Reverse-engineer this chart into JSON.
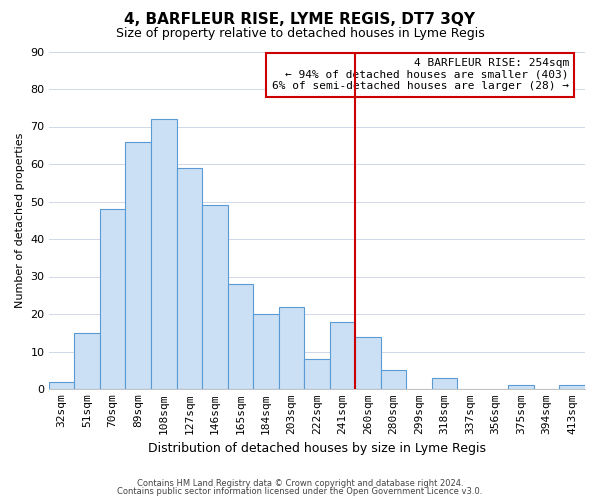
{
  "title": "4, BARFLEUR RISE, LYME REGIS, DT7 3QY",
  "subtitle": "Size of property relative to detached houses in Lyme Regis",
  "xlabel": "Distribution of detached houses by size in Lyme Regis",
  "ylabel": "Number of detached properties",
  "bar_labels": [
    "32sqm",
    "51sqm",
    "70sqm",
    "89sqm",
    "108sqm",
    "127sqm",
    "146sqm",
    "165sqm",
    "184sqm",
    "203sqm",
    "222sqm",
    "241sqm",
    "260sqm",
    "280sqm",
    "299sqm",
    "318sqm",
    "337sqm",
    "356sqm",
    "375sqm",
    "394sqm",
    "413sqm"
  ],
  "bar_values": [
    2,
    15,
    48,
    66,
    72,
    59,
    49,
    28,
    20,
    22,
    8,
    18,
    14,
    5,
    0,
    3,
    0,
    0,
    1,
    0,
    1
  ],
  "bar_color": "#cce0f5",
  "bar_edge_color": "#5b9bd5",
  "grid_color": "#d0d8e8",
  "fig_background_color": "#ffffff",
  "ax_background_color": "#ffffff",
  "vline_color": "#cc0000",
  "vline_x": 11.5,
  "annotation_text": "4 BARFLEUR RISE: 254sqm\n← 94% of detached houses are smaller (403)\n6% of semi-detached houses are larger (28) →",
  "annotation_box_edgecolor": "#cc0000",
  "annotation_box_facecolor": "#ffffff",
  "ylim": [
    0,
    90
  ],
  "yticks": [
    0,
    10,
    20,
    30,
    40,
    50,
    60,
    70,
    80,
    90
  ],
  "title_fontsize": 11,
  "subtitle_fontsize": 9,
  "xlabel_fontsize": 9,
  "ylabel_fontsize": 8,
  "tick_fontsize": 8,
  "annot_fontsize": 8,
  "footer_line1": "Contains HM Land Registry data © Crown copyright and database right 2024.",
  "footer_line2": "Contains public sector information licensed under the Open Government Licence v3.0."
}
